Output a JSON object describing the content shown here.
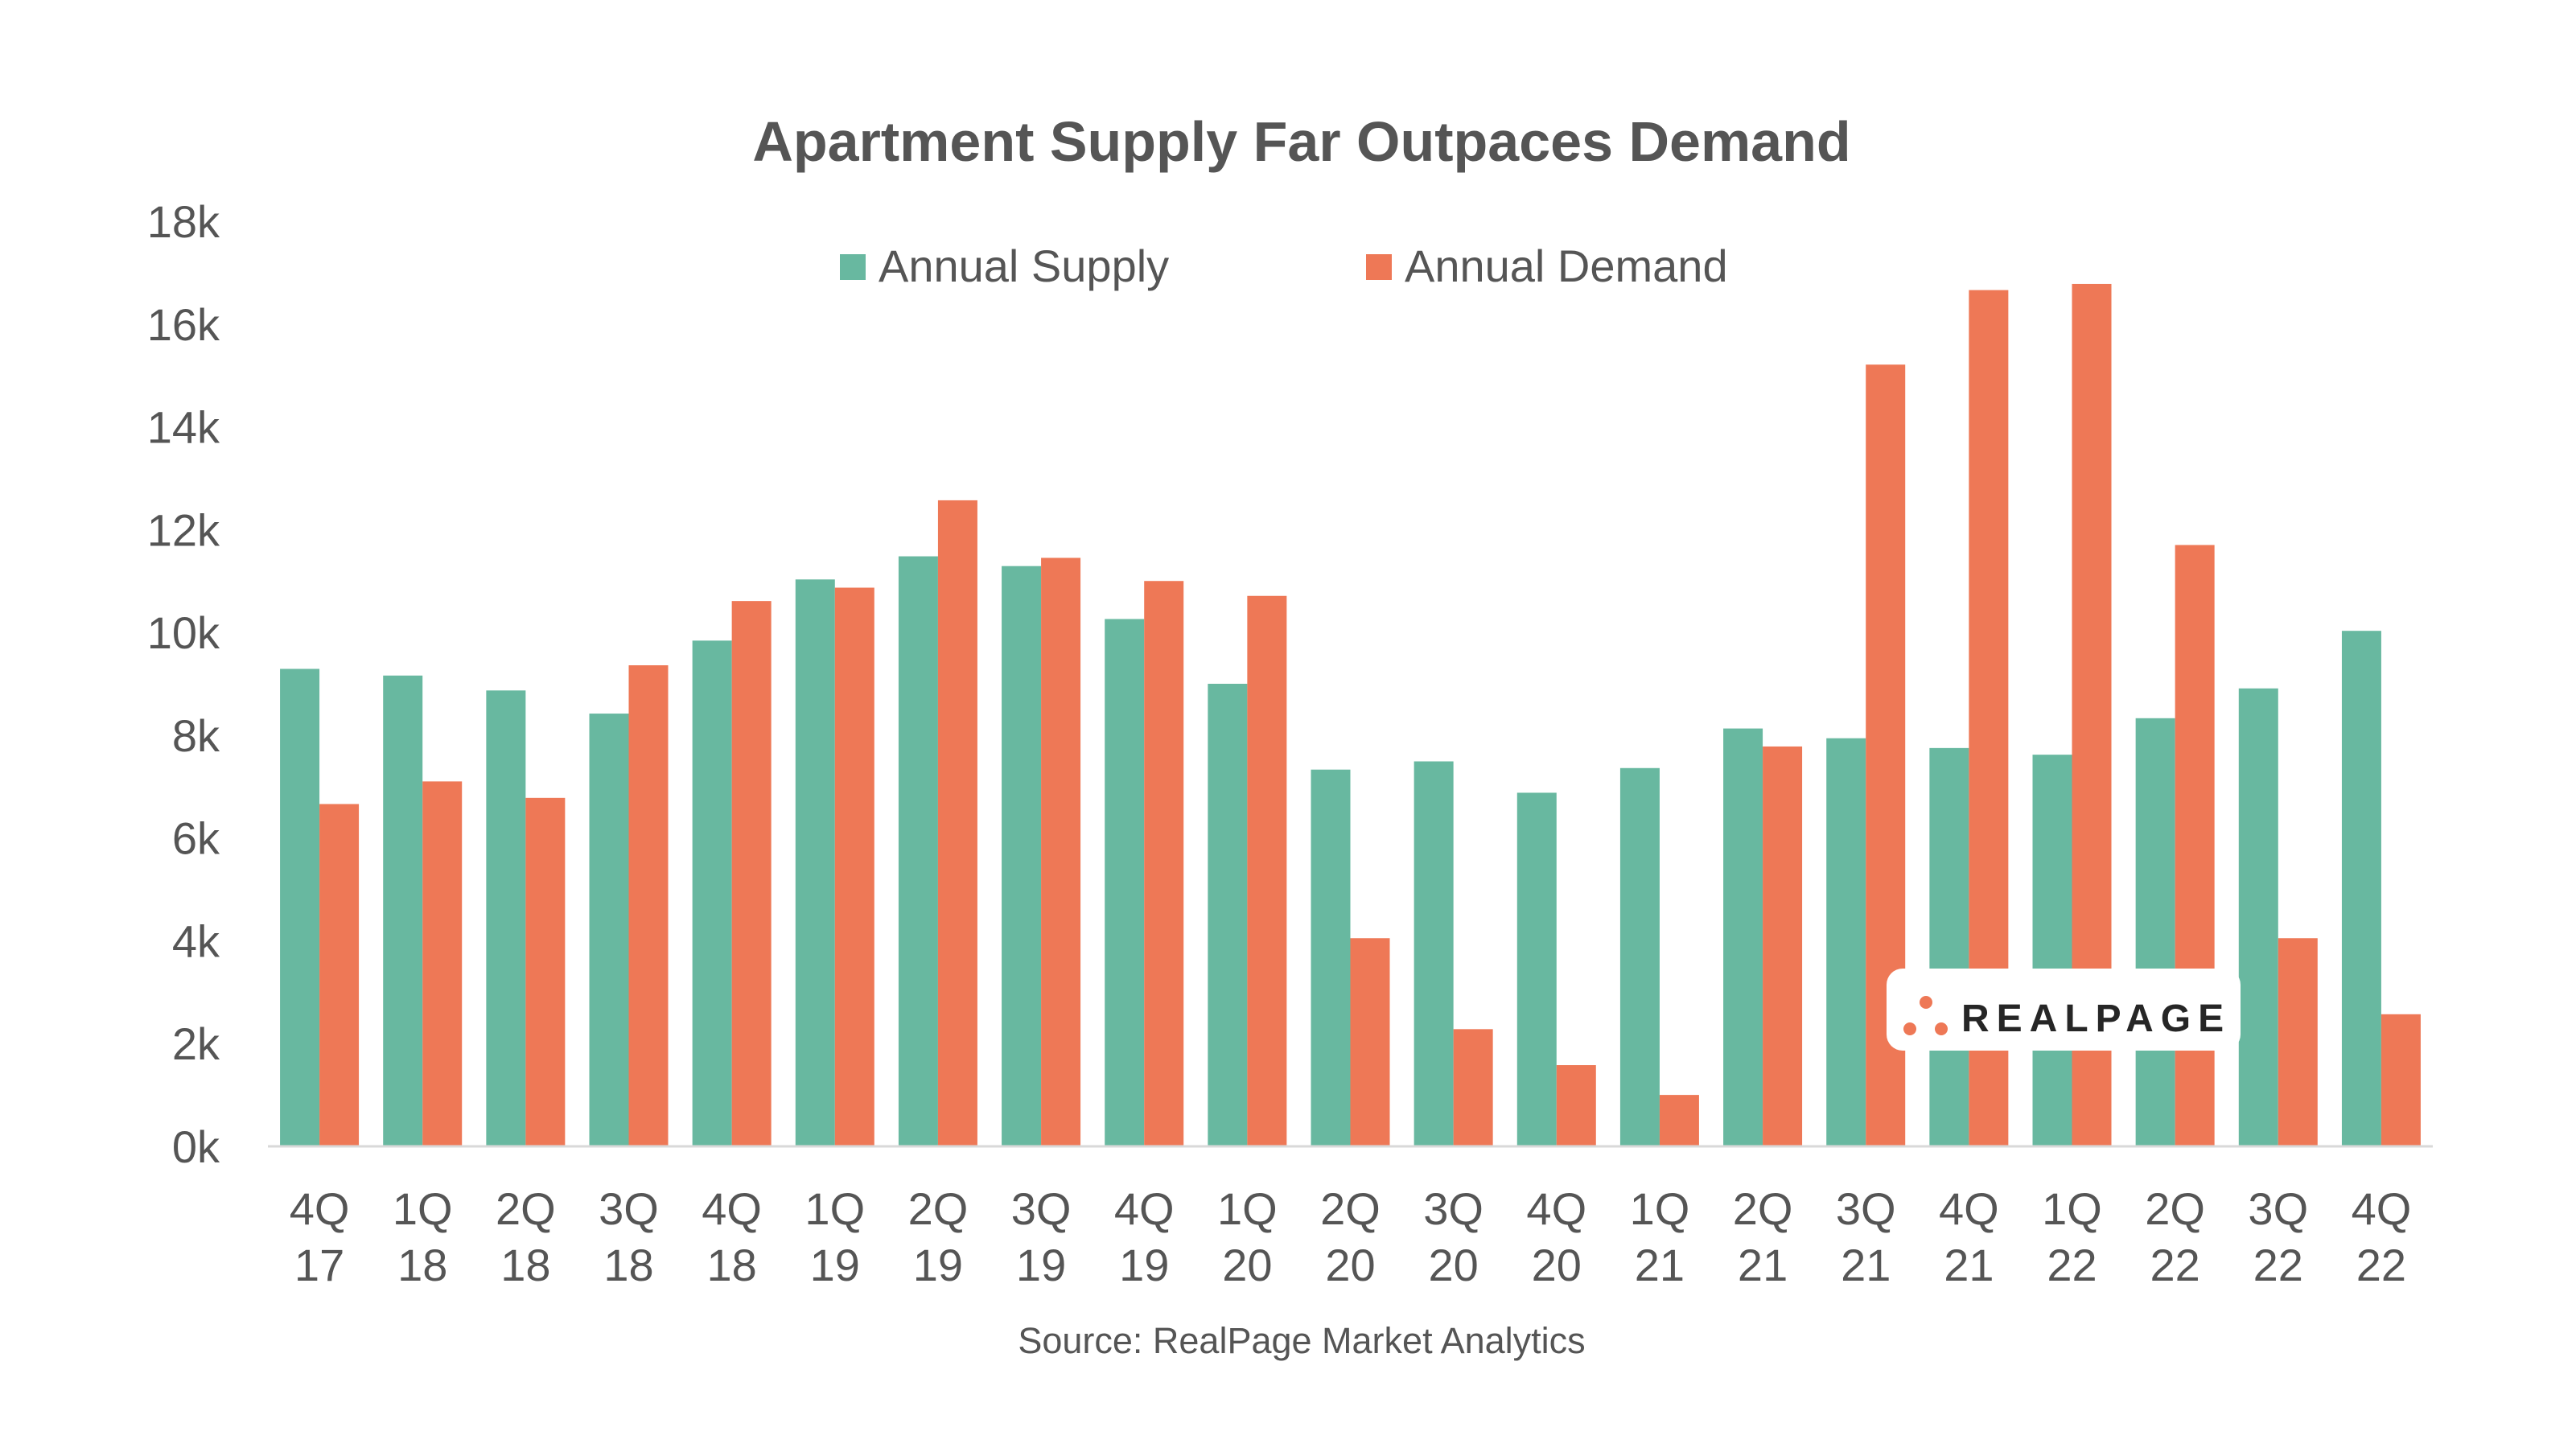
{
  "chart_data": {
    "type": "bar",
    "title": "Apartment Supply Far Outpaces Demand",
    "xlabel": "",
    "ylabel": "",
    "ylim": [
      0,
      18000
    ],
    "yticks": [
      0,
      2000,
      4000,
      6000,
      8000,
      10000,
      12000,
      14000,
      16000,
      18000
    ],
    "ytick_labels": [
      "0k",
      "2k",
      "4k",
      "6k",
      "8k",
      "10k",
      "12k",
      "14k",
      "16k",
      "18k"
    ],
    "grid": false,
    "legend_position": "top-center",
    "categories": [
      [
        "4Q",
        "17"
      ],
      [
        "1Q",
        "18"
      ],
      [
        "2Q",
        "18"
      ],
      [
        "3Q",
        "18"
      ],
      [
        "4Q",
        "18"
      ],
      [
        "1Q",
        "19"
      ],
      [
        "2Q",
        "19"
      ],
      [
        "3Q",
        "19"
      ],
      [
        "4Q",
        "19"
      ],
      [
        "1Q",
        "20"
      ],
      [
        "2Q",
        "20"
      ],
      [
        "3Q",
        "20"
      ],
      [
        "4Q",
        "20"
      ],
      [
        "1Q",
        "21"
      ],
      [
        "2Q",
        "21"
      ],
      [
        "3Q",
        "21"
      ],
      [
        "4Q",
        "21"
      ],
      [
        "1Q",
        "22"
      ],
      [
        "2Q",
        "22"
      ],
      [
        "3Q",
        "22"
      ],
      [
        "4Q",
        "22"
      ]
    ],
    "series": [
      {
        "name": "Annual Supply",
        "color": "#68b8a0",
        "values": [
          9290,
          9160,
          8870,
          8420,
          9840,
          11030,
          11480,
          11290,
          10260,
          9000,
          7330,
          7490,
          6880,
          7360,
          8130,
          7940,
          7750,
          7620,
          8330,
          8910,
          10030
        ]
      },
      {
        "name": "Annual Demand",
        "color": "#ee7856",
        "values": [
          6660,
          7100,
          6780,
          9360,
          10610,
          10870,
          12570,
          11450,
          11000,
          10710,
          4050,
          2280,
          1580,
          1000,
          7780,
          15210,
          16660,
          16780,
          11700,
          4050,
          2570
        ]
      }
    ],
    "source": "Source: RealPage Market Analytics"
  },
  "logo": {
    "text": "REALPAGE",
    "color_dots": "#ee7856",
    "color_text": "#262626"
  }
}
